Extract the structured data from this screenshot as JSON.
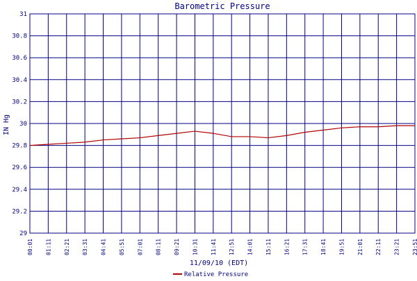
{
  "chart_data": {
    "type": "line",
    "title": "Barometric Pressure",
    "ylabel": "IN Hg",
    "xlabel": "11/09/10 (EDT)",
    "ylim": [
      29,
      31
    ],
    "yticks": [
      "29",
      "29.2",
      "29.4",
      "29.6",
      "29.8",
      "30",
      "30.2",
      "30.4",
      "30.6",
      "30.8",
      "31"
    ],
    "xticks": [
      "00:01",
      "01:11",
      "02:21",
      "03:31",
      "04:41",
      "05:51",
      "07:01",
      "08:11",
      "09:21",
      "10:31",
      "11:41",
      "12:51",
      "14:01",
      "15:11",
      "16:21",
      "17:31",
      "18:41",
      "19:51",
      "21:01",
      "22:11",
      "23:21",
      "23:51"
    ],
    "grid": true,
    "legend_position": "bottom-center",
    "series": [
      {
        "name": "Relative Pressure",
        "color": "#b00000",
        "x": [
          "00:01",
          "01:11",
          "02:21",
          "03:31",
          "04:41",
          "05:51",
          "07:01",
          "08:11",
          "09:21",
          "10:31",
          "11:41",
          "12:51",
          "14:01",
          "15:11",
          "16:21",
          "17:31",
          "18:41",
          "19:51",
          "21:01",
          "22:11",
          "23:21",
          "23:51"
        ],
        "values": [
          29.8,
          29.81,
          29.82,
          29.83,
          29.85,
          29.86,
          29.87,
          29.89,
          29.91,
          29.93,
          29.91,
          29.88,
          29.88,
          29.87,
          29.89,
          29.92,
          29.94,
          29.96,
          29.97,
          29.97,
          29.98,
          29.98
        ]
      }
    ]
  }
}
